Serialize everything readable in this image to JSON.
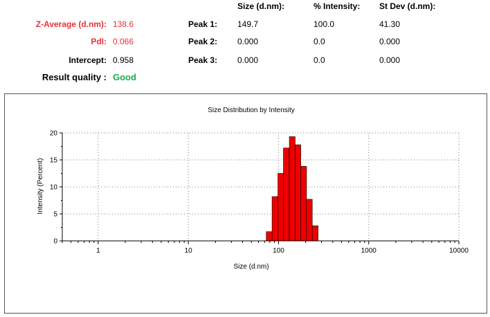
{
  "results": {
    "z_average": {
      "label": "Z-Average (d.nm):",
      "value": "138.6"
    },
    "pdi": {
      "label": "PdI:",
      "value": "0.066"
    },
    "intercept": {
      "label": "Intercept:",
      "value": "0.958"
    },
    "quality": {
      "label": "Result quality :",
      "value": "Good"
    }
  },
  "peaks_table": {
    "headers": [
      "Size (d.nm):",
      "% Intensity:",
      "St Dev (d.nm):"
    ],
    "rows": [
      {
        "label": "Peak 1:",
        "size": "149.7",
        "intensity": "100.0",
        "stdev": "41.30"
      },
      {
        "label": "Peak 2:",
        "size": "0.000",
        "intensity": "0.0",
        "stdev": "0.000"
      },
      {
        "label": "Peak 3:",
        "size": "0.000",
        "intensity": "0.0",
        "stdev": "0.000"
      }
    ]
  },
  "colors": {
    "accent_red": "#e8303a",
    "good_green": "#16b04a",
    "bar_fill": "#ee0000"
  },
  "chart_data": {
    "type": "bar",
    "title": "Size Distribution by Intensity",
    "xlabel": "Size (d.nm)",
    "ylabel": "Intensity (Percent)",
    "x_scale": "log",
    "xlim": [
      0.4,
      10000
    ],
    "ylim": [
      0,
      20
    ],
    "x_ticks": [
      1,
      10,
      100,
      1000,
      10000
    ],
    "x_tick_labels": [
      "1",
      "10",
      "100",
      "1000",
      "10000"
    ],
    "y_ticks": [
      0,
      5,
      10,
      15,
      20
    ],
    "y_tick_labels": [
      "0",
      "5",
      "10",
      "15",
      "20"
    ],
    "grid": true,
    "bars": [
      {
        "x": 78.8,
        "y": 1.7
      },
      {
        "x": 91.3,
        "y": 8.2
      },
      {
        "x": 106,
        "y": 12.5
      },
      {
        "x": 122,
        "y": 17.2
      },
      {
        "x": 142,
        "y": 19.3
      },
      {
        "x": 164,
        "y": 17.8
      },
      {
        "x": 190,
        "y": 13.8
      },
      {
        "x": 220,
        "y": 7.7
      },
      {
        "x": 255,
        "y": 2.8
      }
    ]
  }
}
